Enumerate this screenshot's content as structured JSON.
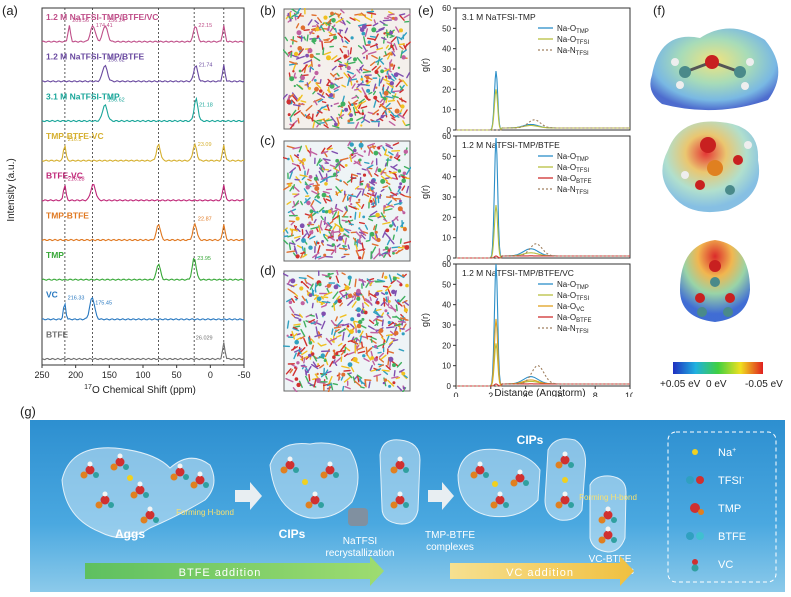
{
  "panel_labels": {
    "a": "(a)",
    "b": "(b)",
    "c": "(c)",
    "d": "(d)",
    "e": "(e)",
    "f": "(f)",
    "g": "(g)"
  },
  "nmr": {
    "ylabel": "Intensity (a.u.)",
    "xlabel_sup": "17",
    "xlabel_main": "O Chemical Shift (ppm)",
    "xticks": [
      "250",
      "200",
      "150",
      "100",
      "50",
      "0",
      "-50"
    ],
    "traces": [
      {
        "label": "1.2 M NaTFSI-TMP/BTFE/VC",
        "color": "#c0508a",
        "peaks": [
          "209.56",
          "174.41",
          "156.24",
          "22.15"
        ]
      },
      {
        "label": "1.2 M NaTFSI-TMP/BTFE",
        "color": "#6a4aa0",
        "peaks": [
          "156.62",
          "21.74"
        ]
      },
      {
        "label": "3.1 M NaTFSI-TMP",
        "color": "#1aa69a",
        "peaks": [
          "156.62",
          "21.18"
        ]
      },
      {
        "label": "TMP-BTFE-VC",
        "color": "#d6b030",
        "peaks": [
          "216.3",
          "23.09"
        ]
      },
      {
        "label": "BTFE-VC",
        "color": "#c02878",
        "peaks": [
          "216.28"
        ]
      },
      {
        "label": "TMP-BTFE",
        "color": "#e07820",
        "peaks": [
          "22.87"
        ]
      },
      {
        "label": "TMP",
        "color": "#38a838",
        "peaks": [
          "23.95"
        ]
      },
      {
        "label": "VC",
        "color": "#2878c0",
        "peaks": [
          "216.33",
          "175.45"
        ]
      },
      {
        "label": "BTFE",
        "color": "#707070",
        "peaks": [
          "26.029"
        ]
      }
    ]
  },
  "chart_data": [
    {
      "type": "line",
      "title": "",
      "xlabel": "17O Chemical Shift (ppm)",
      "ylabel": "Intensity (a.u.)",
      "xlim": [
        250,
        -50
      ],
      "series": [
        {
          "name": "1.2 M NaTFSI-TMP/BTFE/VC",
          "peaks": [
            209.56,
            174.41,
            156.24,
            22.15,
            -20
          ]
        },
        {
          "name": "1.2 M NaTFSI-TMP/BTFE",
          "peaks": [
            156.62,
            21.74,
            -20
          ]
        },
        {
          "name": "3.1 M NaTFSI-TMP",
          "peaks": [
            156.62,
            21.18
          ]
        },
        {
          "name": "TMP-BTFE-VC",
          "peaks": [
            216.3,
            77,
            23.09,
            -20
          ]
        },
        {
          "name": "BTFE-VC",
          "peaks": [
            216.28,
            174,
            -20
          ]
        },
        {
          "name": "TMP-BTFE",
          "peaks": [
            77,
            22.87,
            -20
          ]
        },
        {
          "name": "TMP",
          "peaks": [
            77,
            23.95
          ]
        },
        {
          "name": "VC",
          "peaks": [
            216.33,
            175.45
          ]
        },
        {
          "name": "BTFE",
          "peaks": [
            -20
          ]
        }
      ]
    },
    {
      "type": "line",
      "xlabel": "Distance (Angstorm)",
      "ylabel": "g(r)",
      "xlim": [
        0,
        10
      ],
      "ylim": [
        0,
        60
      ],
      "panels": [
        {
          "title": "3.1 M NaTFSI-TMP",
          "series": [
            {
              "name": "Na-O TMP",
              "peak_x": 2.3,
              "peak_y": 29
            },
            {
              "name": "Na-O TFSI",
              "peak_x": 2.3,
              "peak_y": 20
            },
            {
              "name": "Na-N TFSI",
              "peak_x": 4.5,
              "peak_y": 4
            }
          ]
        },
        {
          "title": "1.2 M NaTFSI-TMP/BTFE",
          "series": [
            {
              "name": "Na-O TMP",
              "peak_x": 2.3,
              "peak_y": 59
            },
            {
              "name": "Na-O TFSI",
              "peak_x": 2.3,
              "peak_y": 26
            },
            {
              "name": "Na-O BTFE",
              "peak_x": 2.3,
              "peak_y": 1
            },
            {
              "name": "Na-N TFSI",
              "peak_x": 4.6,
              "peak_y": 6
            }
          ]
        },
        {
          "title": "1.2 M NaTFSI-TMP/BTFE/VC",
          "series": [
            {
              "name": "Na-O TMP",
              "peak_x": 2.3,
              "peak_y": 60
            },
            {
              "name": "Na-O TFSI",
              "peak_x": 2.3,
              "peak_y": 21
            },
            {
              "name": "Na-O VC",
              "peak_x": 2.3,
              "peak_y": 33
            },
            {
              "name": "Na-O BTFE",
              "peak_x": 2.3,
              "peak_y": 1
            },
            {
              "name": "Na-N TFSI",
              "peak_x": 4.7,
              "peak_y": 9
            }
          ]
        }
      ]
    }
  ],
  "rdf": {
    "yticks": [
      "0",
      "10",
      "20",
      "30",
      "40",
      "50",
      "60"
    ],
    "xticks": [
      "0",
      "2",
      "4",
      "6",
      "8",
      "10"
    ],
    "ylabel": "g(r)",
    "xlabel": "Distance (Angstorm)",
    "panels": [
      {
        "title": "3.1 M NaTFSI-TMP",
        "legend": [
          {
            "main": "Na-O",
            "sub": "TMP",
            "color": "#2c8fc8",
            "dash": ""
          },
          {
            "main": "Na-O",
            "sub": "TFSI",
            "color": "#b8c040",
            "dash": ""
          },
          {
            "main": "Na-N",
            "sub": "TFSI",
            "color": "#a08060",
            "dash": "2,2"
          }
        ]
      },
      {
        "title": "1.2 M NaTFSI-TMP/BTFE",
        "legend": [
          {
            "main": "Na-O",
            "sub": "TMP",
            "color": "#2c8fc8",
            "dash": ""
          },
          {
            "main": "Na-O",
            "sub": "TFSI",
            "color": "#b8c040",
            "dash": ""
          },
          {
            "main": "Na-O",
            "sub": "BTFE",
            "color": "#d03030",
            "dash": ""
          },
          {
            "main": "Na-N",
            "sub": "TFSI",
            "color": "#a08060",
            "dash": "2,2"
          }
        ]
      },
      {
        "title": "1.2 M NaTFSI-TMP/BTFE/VC",
        "legend": [
          {
            "main": "Na-O",
            "sub": "TMP",
            "color": "#2c8fc8",
            "dash": ""
          },
          {
            "main": "Na-O",
            "sub": "TFSI",
            "color": "#b8c040",
            "dash": ""
          },
          {
            "main": "Na-O",
            "sub": "VC",
            "color": "#e0a020",
            "dash": ""
          },
          {
            "main": "Na-O",
            "sub": "BTFE",
            "color": "#d03030",
            "dash": ""
          },
          {
            "main": "Na-N",
            "sub": "TFSI",
            "color": "#a08060",
            "dash": "2,2"
          }
        ]
      }
    ]
  },
  "esp_scale": {
    "labels": [
      "+0.05 eV",
      "0 eV",
      "-0.05 eV"
    ]
  },
  "scheme": {
    "aggs": "Aggs",
    "hbond1": "Forming H-bond",
    "cips1": "CIPs",
    "nacl_line1": "NaTFSI",
    "nacl_line2": "recrystallization",
    "tmp_btfe_line1": "TMP-BTFE",
    "tmp_btfe_line2": "complexes",
    "cips2": "CIPs",
    "hbond2": "Forming H-bond",
    "vc_btfe_line1": "VC-BTFE",
    "vc_btfe_line2": "complexes",
    "arrow_btfe": "BTFE addition",
    "arrow_vc": "VC addition",
    "legend": [
      {
        "label": "Na",
        "sup": "+"
      },
      {
        "label": "TFSI",
        "sup": "-"
      },
      {
        "label": "TMP",
        "sup": ""
      },
      {
        "label": "BTFE",
        "sup": ""
      },
      {
        "label": "VC",
        "sup": ""
      }
    ]
  }
}
